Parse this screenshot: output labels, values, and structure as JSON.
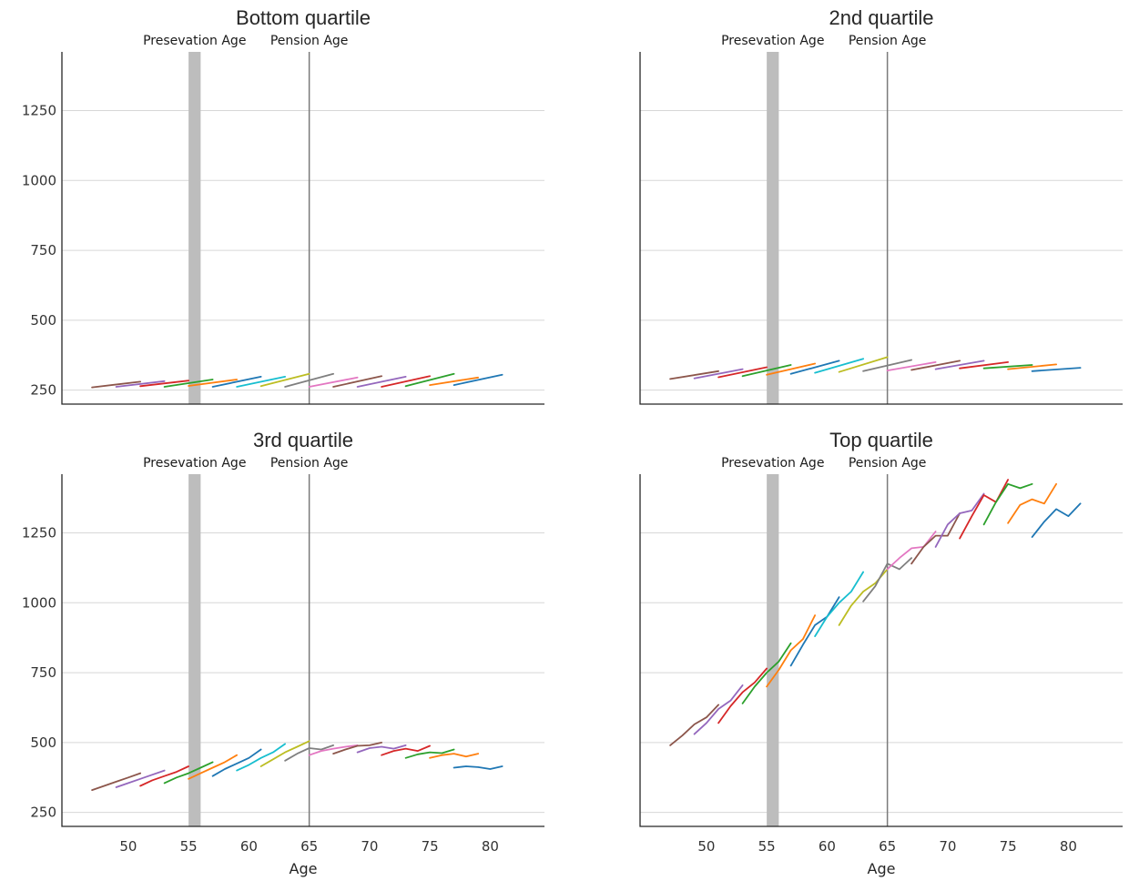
{
  "chart_data": [
    {
      "type": "line",
      "title": "Bottom quartile",
      "xlabel": "",
      "ylabel": "",
      "xlim": [
        44.5,
        84.5
      ],
      "ylim": [
        200,
        1460
      ],
      "yticks": [
        250,
        500,
        750,
        1000,
        1250
      ],
      "xticks": [],
      "annotations": [
        {
          "label": "Presevation Age",
          "x": 55.5,
          "kind": "band"
        },
        {
          "label": "Pension Age",
          "x": 65,
          "kind": "line"
        }
      ],
      "grid": true,
      "series": [
        {
          "color": "#8c564b",
          "x": [
            47,
            51
          ],
          "y": [
            260,
            280
          ]
        },
        {
          "color": "#9467bd",
          "x": [
            49,
            53
          ],
          "y": [
            262,
            282
          ]
        },
        {
          "color": "#d62728",
          "x": [
            51,
            55
          ],
          "y": [
            264,
            284
          ]
        },
        {
          "color": "#2ca02c",
          "x": [
            53,
            57
          ],
          "y": [
            262,
            288
          ]
        },
        {
          "color": "#ff7f0e",
          "x": [
            55,
            59
          ],
          "y": [
            265,
            288
          ]
        },
        {
          "color": "#1f77b4",
          "x": [
            57,
            61
          ],
          "y": [
            262,
            298
          ]
        },
        {
          "color": "#17becf",
          "x": [
            59,
            63
          ],
          "y": [
            262,
            298
          ]
        },
        {
          "color": "#bcbd22",
          "x": [
            61,
            65
          ],
          "y": [
            264,
            308
          ]
        },
        {
          "color": "#7f7f7f",
          "x": [
            63,
            67
          ],
          "y": [
            262,
            308
          ]
        },
        {
          "color": "#e377c2",
          "x": [
            65,
            69
          ],
          "y": [
            262,
            295
          ]
        },
        {
          "color": "#8c564b",
          "x": [
            67,
            71
          ],
          "y": [
            262,
            300
          ]
        },
        {
          "color": "#9467bd",
          "x": [
            69,
            73
          ],
          "y": [
            262,
            298
          ]
        },
        {
          "color": "#d62728",
          "x": [
            71,
            75
          ],
          "y": [
            262,
            300
          ]
        },
        {
          "color": "#2ca02c",
          "x": [
            73,
            77
          ],
          "y": [
            264,
            308
          ]
        },
        {
          "color": "#ff7f0e",
          "x": [
            75,
            79
          ],
          "y": [
            268,
            295
          ]
        },
        {
          "color": "#1f77b4",
          "x": [
            77,
            81
          ],
          "y": [
            268,
            305
          ]
        }
      ]
    },
    {
      "type": "line",
      "title": "2nd quartile",
      "xlabel": "",
      "ylabel": "",
      "xlim": [
        44.5,
        84.5
      ],
      "ylim": [
        200,
        1460
      ],
      "yticks": [],
      "xticks": [],
      "annotations": [
        {
          "label": "Presevation Age",
          "x": 55.5,
          "kind": "band"
        },
        {
          "label": "Pension Age",
          "x": 65,
          "kind": "line"
        }
      ],
      "grid": true,
      "series": [
        {
          "color": "#8c564b",
          "x": [
            47,
            51
          ],
          "y": [
            290,
            318
          ]
        },
        {
          "color": "#9467bd",
          "x": [
            49,
            53
          ],
          "y": [
            292,
            325
          ]
        },
        {
          "color": "#d62728",
          "x": [
            51,
            55
          ],
          "y": [
            296,
            332
          ]
        },
        {
          "color": "#2ca02c",
          "x": [
            53,
            57
          ],
          "y": [
            300,
            340
          ]
        },
        {
          "color": "#ff7f0e",
          "x": [
            55,
            59
          ],
          "y": [
            305,
            345
          ]
        },
        {
          "color": "#1f77b4",
          "x": [
            57,
            61
          ],
          "y": [
            308,
            355
          ]
        },
        {
          "color": "#17becf",
          "x": [
            59,
            63
          ],
          "y": [
            312,
            362
          ]
        },
        {
          "color": "#bcbd22",
          "x": [
            61,
            65
          ],
          "y": [
            315,
            368
          ]
        },
        {
          "color": "#7f7f7f",
          "x": [
            63,
            67
          ],
          "y": [
            318,
            358
          ]
        },
        {
          "color": "#e377c2",
          "x": [
            65,
            69
          ],
          "y": [
            320,
            350
          ]
        },
        {
          "color": "#8c564b",
          "x": [
            67,
            71
          ],
          "y": [
            322,
            355
          ]
        },
        {
          "color": "#9467bd",
          "x": [
            69,
            73
          ],
          "y": [
            325,
            355
          ]
        },
        {
          "color": "#d62728",
          "x": [
            71,
            75
          ],
          "y": [
            328,
            350
          ]
        },
        {
          "color": "#2ca02c",
          "x": [
            73,
            77
          ],
          "y": [
            328,
            340
          ]
        },
        {
          "color": "#ff7f0e",
          "x": [
            75,
            79
          ],
          "y": [
            325,
            342
          ]
        },
        {
          "color": "#1f77b4",
          "x": [
            77,
            81
          ],
          "y": [
            318,
            330
          ]
        }
      ]
    },
    {
      "type": "line",
      "title": "3rd quartile",
      "xlabel": "Age",
      "ylabel": "",
      "xlim": [
        44.5,
        84.5
      ],
      "ylim": [
        200,
        1460
      ],
      "yticks": [
        250,
        500,
        750,
        1000,
        1250
      ],
      "xticks": [
        50,
        55,
        60,
        65,
        70,
        75,
        80
      ],
      "annotations": [
        {
          "label": "Presevation Age",
          "x": 55.5,
          "kind": "band"
        },
        {
          "label": "Pension Age",
          "x": 65,
          "kind": "line"
        }
      ],
      "grid": true,
      "series": [
        {
          "color": "#8c564b",
          "x": [
            47,
            48,
            49,
            50,
            51
          ],
          "y": [
            330,
            345,
            360,
            375,
            390
          ]
        },
        {
          "color": "#9467bd",
          "x": [
            49,
            50,
            51,
            52,
            53
          ],
          "y": [
            340,
            355,
            370,
            385,
            400
          ]
        },
        {
          "color": "#d62728",
          "x": [
            51,
            52,
            53,
            54,
            55
          ],
          "y": [
            345,
            365,
            380,
            395,
            415
          ]
        },
        {
          "color": "#2ca02c",
          "x": [
            53,
            54,
            55,
            56,
            57
          ],
          "y": [
            355,
            375,
            390,
            410,
            430
          ]
        },
        {
          "color": "#ff7f0e",
          "x": [
            55,
            56,
            57,
            58,
            59
          ],
          "y": [
            370,
            390,
            410,
            430,
            455
          ]
        },
        {
          "color": "#1f77b4",
          "x": [
            57,
            58,
            59,
            60,
            61
          ],
          "y": [
            380,
            405,
            425,
            445,
            475
          ]
        },
        {
          "color": "#17becf",
          "x": [
            59,
            60,
            61,
            62,
            63
          ],
          "y": [
            400,
            420,
            445,
            465,
            495
          ]
        },
        {
          "color": "#bcbd22",
          "x": [
            61,
            62,
            63,
            64,
            65
          ],
          "y": [
            415,
            440,
            465,
            485,
            505
          ]
        },
        {
          "color": "#7f7f7f",
          "x": [
            63,
            64,
            65,
            66,
            67
          ],
          "y": [
            435,
            460,
            480,
            475,
            490
          ]
        },
        {
          "color": "#e377c2",
          "x": [
            65,
            66,
            67,
            68,
            69
          ],
          "y": [
            455,
            470,
            478,
            485,
            490
          ]
        },
        {
          "color": "#8c564b",
          "x": [
            67,
            68,
            69,
            70,
            71
          ],
          "y": [
            460,
            475,
            488,
            490,
            500
          ]
        },
        {
          "color": "#9467bd",
          "x": [
            69,
            70,
            71,
            72,
            73
          ],
          "y": [
            465,
            480,
            485,
            478,
            490
          ]
        },
        {
          "color": "#d62728",
          "x": [
            71,
            72,
            73,
            74,
            75
          ],
          "y": [
            455,
            470,
            478,
            470,
            488
          ]
        },
        {
          "color": "#2ca02c",
          "x": [
            73,
            74,
            75,
            76,
            77
          ],
          "y": [
            445,
            458,
            465,
            462,
            475
          ]
        },
        {
          "color": "#ff7f0e",
          "x": [
            75,
            76,
            77,
            78,
            79
          ],
          "y": [
            445,
            455,
            460,
            450,
            460
          ]
        },
        {
          "color": "#1f77b4",
          "x": [
            77,
            78,
            79,
            80,
            81
          ],
          "y": [
            410,
            415,
            412,
            405,
            415
          ]
        }
      ]
    },
    {
      "type": "line",
      "title": "Top quartile",
      "xlabel": "Age",
      "ylabel": "",
      "xlim": [
        44.5,
        84.5
      ],
      "ylim": [
        200,
        1460
      ],
      "yticks": [],
      "xticks": [
        50,
        55,
        60,
        65,
        70,
        75,
        80
      ],
      "annotations": [
        {
          "label": "Presevation Age",
          "x": 55.5,
          "kind": "band"
        },
        {
          "label": "Pension Age",
          "x": 65,
          "kind": "line"
        }
      ],
      "grid": true,
      "series": [
        {
          "color": "#8c564b",
          "x": [
            47,
            48,
            49,
            50,
            51
          ],
          "y": [
            490,
            525,
            565,
            590,
            635
          ]
        },
        {
          "color": "#9467bd",
          "x": [
            49,
            50,
            51,
            52,
            53
          ],
          "y": [
            530,
            570,
            620,
            650,
            705
          ]
        },
        {
          "color": "#d62728",
          "x": [
            51,
            52,
            53,
            54,
            55
          ],
          "y": [
            570,
            630,
            680,
            715,
            765
          ]
        },
        {
          "color": "#2ca02c",
          "x": [
            53,
            54,
            55,
            56,
            57
          ],
          "y": [
            640,
            700,
            750,
            790,
            855
          ]
        },
        {
          "color": "#ff7f0e",
          "x": [
            55,
            56,
            57,
            58,
            59
          ],
          "y": [
            700,
            760,
            830,
            870,
            955
          ]
        },
        {
          "color": "#1f77b4",
          "x": [
            57,
            58,
            59,
            60,
            61
          ],
          "y": [
            775,
            850,
            920,
            950,
            1020
          ]
        },
        {
          "color": "#17becf",
          "x": [
            59,
            60,
            61,
            62,
            63
          ],
          "y": [
            880,
            950,
            1000,
            1040,
            1110
          ]
        },
        {
          "color": "#bcbd22",
          "x": [
            61,
            62,
            63,
            64,
            65
          ],
          "y": [
            920,
            990,
            1040,
            1070,
            1120
          ]
        },
        {
          "color": "#7f7f7f",
          "x": [
            63,
            64,
            65,
            66,
            67
          ],
          "y": [
            1005,
            1060,
            1140,
            1120,
            1160
          ]
        },
        {
          "color": "#e377c2",
          "x": [
            65,
            66,
            67,
            68,
            69
          ],
          "y": [
            1120,
            1160,
            1195,
            1200,
            1255
          ]
        },
        {
          "color": "#8c564b",
          "x": [
            67,
            68,
            69,
            70,
            71
          ],
          "y": [
            1140,
            1200,
            1240,
            1240,
            1320
          ]
        },
        {
          "color": "#9467bd",
          "x": [
            69,
            70,
            71,
            72,
            73
          ],
          "y": [
            1200,
            1280,
            1320,
            1330,
            1390
          ]
        },
        {
          "color": "#d62728",
          "x": [
            71,
            72,
            73,
            74,
            75
          ],
          "y": [
            1230,
            1310,
            1385,
            1360,
            1440
          ]
        },
        {
          "color": "#2ca02c",
          "x": [
            73,
            74,
            75,
            76,
            77
          ],
          "y": [
            1280,
            1360,
            1425,
            1410,
            1425
          ]
        },
        {
          "color": "#ff7f0e",
          "x": [
            75,
            76,
            77,
            78,
            79
          ],
          "y": [
            1285,
            1350,
            1370,
            1355,
            1425
          ]
        },
        {
          "color": "#1f77b4",
          "x": [
            77,
            78,
            79,
            80,
            81
          ],
          "y": [
            1235,
            1290,
            1335,
            1310,
            1355
          ]
        }
      ]
    }
  ]
}
